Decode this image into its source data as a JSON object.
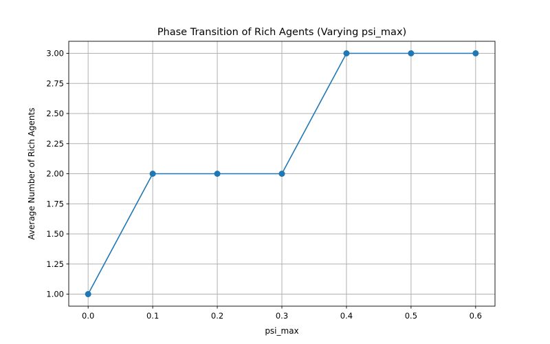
{
  "chart_data": {
    "type": "line",
    "title": "Phase Transition of Rich Agents (Varying psi_max)",
    "xlabel": "psi_max",
    "ylabel": "Average Number of Rich Agents",
    "x": [
      0.0,
      0.1,
      0.2,
      0.3,
      0.4,
      0.5,
      0.6
    ],
    "series": [
      {
        "name": "Average Number of Rich Agents",
        "values": [
          1.0,
          2.0,
          2.0,
          2.0,
          3.0,
          3.0,
          3.0
        ],
        "color": "#1f77b4",
        "marker": "circle"
      }
    ],
    "xlim": [
      -0.03,
      0.63
    ],
    "ylim": [
      0.9,
      3.1
    ],
    "xticks": [
      0.0,
      0.1,
      0.2,
      0.3,
      0.4,
      0.5,
      0.6
    ],
    "xtick_labels": [
      "0.0",
      "0.1",
      "0.2",
      "0.3",
      "0.4",
      "0.5",
      "0.6"
    ],
    "yticks": [
      1.0,
      1.25,
      1.5,
      1.75,
      2.0,
      2.25,
      2.5,
      2.75,
      3.0
    ],
    "ytick_labels": [
      "1.00",
      "1.25",
      "1.50",
      "1.75",
      "2.00",
      "2.25",
      "2.50",
      "2.75",
      "3.00"
    ],
    "grid": true,
    "legend": "none"
  }
}
